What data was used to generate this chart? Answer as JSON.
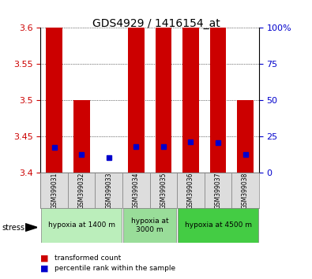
{
  "title": "GDS4929 / 1416154_at",
  "samples": [
    "GSM399031",
    "GSM399032",
    "GSM399033",
    "GSM399034",
    "GSM399035",
    "GSM399036",
    "GSM399037",
    "GSM399038"
  ],
  "red_bar_tops": [
    3.6,
    3.5,
    3.401,
    3.6,
    3.6,
    3.6,
    3.6,
    3.5
  ],
  "red_bar_bottom": 3.4,
  "blue_y": [
    3.435,
    3.425,
    3.421,
    3.436,
    3.436,
    3.443,
    3.442,
    3.425
  ],
  "ylim": [
    3.4,
    3.6
  ],
  "yticks_left": [
    3.4,
    3.45,
    3.5,
    3.55,
    3.6
  ],
  "yticks_left_labels": [
    "3.4",
    "3.45",
    "3.5",
    "3.55",
    "3.6"
  ],
  "yticks_right": [
    0,
    25,
    50,
    75,
    100
  ],
  "yticks_right_labels": [
    "0",
    "25",
    "50",
    "75",
    "100%"
  ],
  "left_tick_color": "#cc0000",
  "right_tick_color": "#0000cc",
  "bar_color": "#cc0000",
  "blue_color": "#0000cc",
  "bar_width": 0.6,
  "groups": [
    {
      "label": "hypoxia at 1400 m",
      "start": 0,
      "end": 2,
      "color": "#bbeebb"
    },
    {
      "label": "hypoxia at\n3000 m",
      "start": 3,
      "end": 4,
      "color": "#99dd99"
    },
    {
      "label": "hypoxia at 4500 m",
      "start": 5,
      "end": 7,
      "color": "#44cc44"
    }
  ],
  "legend_red": "transformed count",
  "legend_blue": "percentile rank within the sample",
  "stress_label": "stress"
}
